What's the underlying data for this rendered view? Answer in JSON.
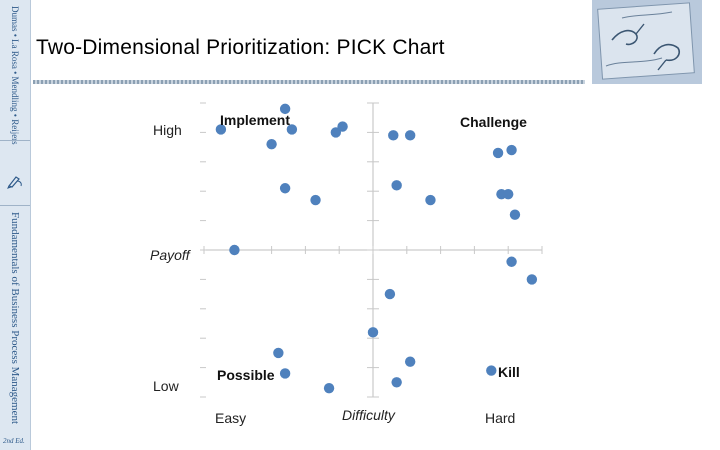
{
  "slide": {
    "title": "Two-Dimensional Prioritization: PICK Chart"
  },
  "sidebar": {
    "authors": "Dumas • La Rosa • Mendling • Reijers",
    "book_title": "Fundamentals of Business Process Management",
    "edition": "2nd Ed."
  },
  "logo": {
    "icon": "hand-drawing-sketch-icon"
  },
  "chart_data": {
    "type": "scatter",
    "title": "",
    "xlabel": "Difficulty",
    "ylabel": "Payoff",
    "x_tick_labels": [
      "Easy",
      "Hard"
    ],
    "y_tick_labels": [
      "High",
      "Low"
    ],
    "xlim": [
      0,
      10
    ],
    "ylim": [
      0,
      10
    ],
    "quadrants": {
      "top_left": "Implement",
      "top_right": "Challenge",
      "bottom_left": "Possible",
      "bottom_right": "Kill"
    },
    "point_color": "#4f81bd",
    "grid": false,
    "points": [
      {
        "x": 0.5,
        "y": 9.1
      },
      {
        "x": 2.4,
        "y": 9.8
      },
      {
        "x": 2.6,
        "y": 9.1
      },
      {
        "x": 2.0,
        "y": 8.6
      },
      {
        "x": 3.9,
        "y": 9.0
      },
      {
        "x": 4.1,
        "y": 9.2
      },
      {
        "x": 2.4,
        "y": 7.1
      },
      {
        "x": 3.3,
        "y": 6.7
      },
      {
        "x": 0.9,
        "y": 5.0
      },
      {
        "x": 5.6,
        "y": 8.9
      },
      {
        "x": 6.1,
        "y": 8.9
      },
      {
        "x": 8.7,
        "y": 8.3
      },
      {
        "x": 9.1,
        "y": 8.4
      },
      {
        "x": 5.7,
        "y": 7.2
      },
      {
        "x": 6.7,
        "y": 6.7
      },
      {
        "x": 8.8,
        "y": 6.9
      },
      {
        "x": 9.0,
        "y": 6.9
      },
      {
        "x": 9.2,
        "y": 6.2
      },
      {
        "x": 9.1,
        "y": 4.6
      },
      {
        "x": 9.7,
        "y": 4.0
      },
      {
        "x": 5.5,
        "y": 3.5
      },
      {
        "x": 5.0,
        "y": 2.2
      },
      {
        "x": 2.2,
        "y": 1.5
      },
      {
        "x": 6.1,
        "y": 1.2
      },
      {
        "x": 2.4,
        "y": 0.8
      },
      {
        "x": 8.5,
        "y": 0.9
      },
      {
        "x": 5.7,
        "y": 0.5
      },
      {
        "x": 3.7,
        "y": 0.3
      }
    ]
  }
}
